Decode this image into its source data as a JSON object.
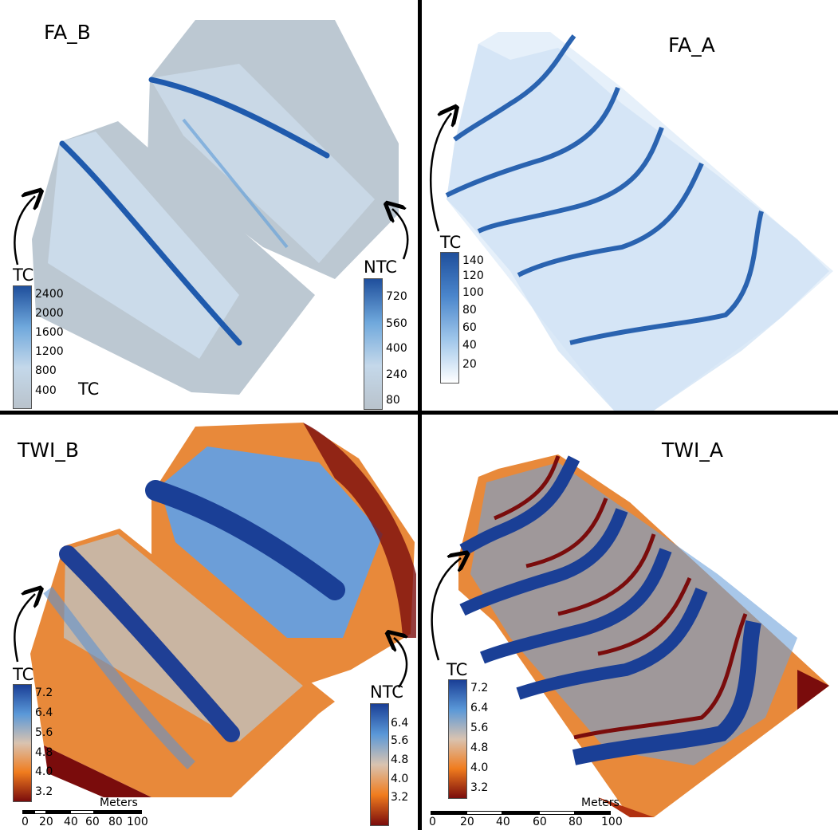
{
  "panels": {
    "fa_b": {
      "title": "FA_B"
    },
    "fa_a": {
      "title": "FA_A"
    },
    "twi_b": {
      "title": "TWI_B"
    },
    "twi_a": {
      "title": "TWI_A"
    }
  },
  "legends": {
    "fa_b_tc": {
      "title": "TC",
      "ticks": [
        "2400",
        "2000",
        "1600",
        "1200",
        "800",
        "400"
      ],
      "bottom_label": "TC"
    },
    "fa_b_ntc": {
      "title": "NTC",
      "ticks": [
        "720",
        "560",
        "400",
        "240",
        "80"
      ]
    },
    "fa_a_tc": {
      "title": "TC",
      "ticks": [
        "140",
        "120",
        "100",
        "80",
        "60",
        "40",
        "20"
      ]
    },
    "twi_b_tc": {
      "title": "TC",
      "ticks": [
        "7.2",
        "6.4",
        "5.6",
        "4.8",
        "4.0",
        "3.2"
      ]
    },
    "twi_b_ntc": {
      "title": "NTC",
      "ticks": [
        "6.4",
        "5.6",
        "4.8",
        "4.0",
        "3.2"
      ]
    },
    "twi_a_tc": {
      "title": "TC",
      "ticks": [
        "7.2",
        "6.4",
        "5.6",
        "4.8",
        "4.0",
        "3.2"
      ]
    }
  },
  "scalebars": {
    "twi_b": {
      "unit": "Meters",
      "labels": [
        "0",
        "20",
        "40",
        "60",
        "80",
        "100"
      ]
    },
    "twi_a": {
      "unit": "Meters",
      "labels": [
        "0",
        "20",
        "40",
        "60",
        "80",
        "100"
      ]
    }
  },
  "colors": {
    "fa_ramp": [
      "#ffffff",
      "#c6dbef",
      "#6baed6",
      "#2171b5",
      "#08306b"
    ],
    "fa_b_bg": "#b8c3cc",
    "twi_ramp": [
      "#7a0c0c",
      "#f07c1e",
      "#d9c3b0",
      "#5a98d8",
      "#1a3f96"
    ]
  }
}
